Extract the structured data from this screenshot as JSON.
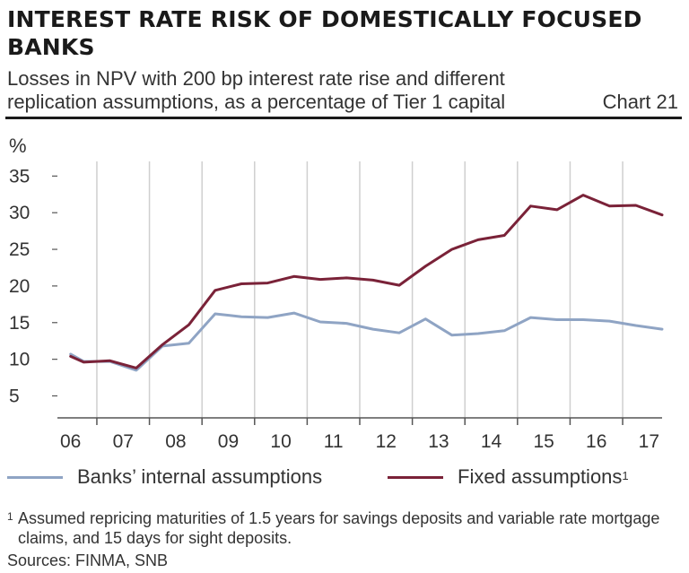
{
  "header": {
    "title": "INTEREST RATE RISK OF DOMESTICALLY FOCUSED BANKS",
    "subtitle_line1": "Losses in NPV with 200 bp interest rate rise and different",
    "subtitle_line2": "replication assumptions, as a percentage of Tier 1 capital",
    "chart_number": "Chart 21"
  },
  "colors": {
    "internal": "#8fa4c4",
    "fixed": "#7a2238",
    "grid": "#cfcfcf",
    "axis": "#555555"
  },
  "chart_data": {
    "type": "line",
    "unit_label": "%",
    "ylim": [
      2,
      37
    ],
    "xlim": [
      2006.25,
      2017.75
    ],
    "yticks": [
      5,
      10,
      15,
      20,
      25,
      30,
      35
    ],
    "x_tick_labels": [
      "06",
      "07",
      "08",
      "09",
      "10",
      "11",
      "12",
      "13",
      "14",
      "15",
      "16",
      "17"
    ],
    "grid": "vertical lines at year boundaries",
    "series": [
      {
        "name": "Banks’ internal assumptions",
        "color": "#8fa4c4",
        "x": [
          2006.5,
          2006.75,
          2007.25,
          2007.75,
          2008.25,
          2008.75,
          2009.25,
          2009.75,
          2010.25,
          2010.75,
          2011.25,
          2011.75,
          2012.25,
          2012.75,
          2013.25,
          2013.75,
          2014.25,
          2014.75,
          2015.25,
          2015.75,
          2016.25,
          2016.75,
          2017.25,
          2017.75
        ],
        "values": [
          10.7,
          9.7,
          9.7,
          8.5,
          11.8,
          12.2,
          16.2,
          15.8,
          15.7,
          16.3,
          15.1,
          14.9,
          14.1,
          13.6,
          15.5,
          13.3,
          13.5,
          13.9,
          15.7,
          15.4,
          15.4,
          15.2,
          14.6,
          14.1
        ]
      },
      {
        "name": "Fixed assumptions",
        "name_sup": "1",
        "color": "#7a2238",
        "x": [
          2006.5,
          2006.75,
          2007.25,
          2007.75,
          2008.25,
          2008.75,
          2009.25,
          2009.75,
          2010.25,
          2010.75,
          2011.25,
          2011.75,
          2012.25,
          2012.75,
          2013.25,
          2013.75,
          2014.25,
          2014.75,
          2015.25,
          2015.75,
          2016.25,
          2016.75,
          2017.25,
          2017.75
        ],
        "values": [
          10.4,
          9.6,
          9.8,
          8.8,
          12.0,
          14.7,
          19.4,
          20.3,
          20.4,
          21.3,
          20.9,
          21.1,
          20.8,
          20.1,
          22.7,
          25.0,
          26.3,
          26.9,
          30.9,
          30.4,
          32.4,
          30.9,
          31.0,
          29.7
        ]
      }
    ]
  },
  "footnote": {
    "mark": "1",
    "text": "Assumed repricing maturities of 1.5 years for savings deposits and variable rate mortgage claims, and 15 days for sight deposits."
  },
  "sources": "Sources: FINMA, SNB"
}
